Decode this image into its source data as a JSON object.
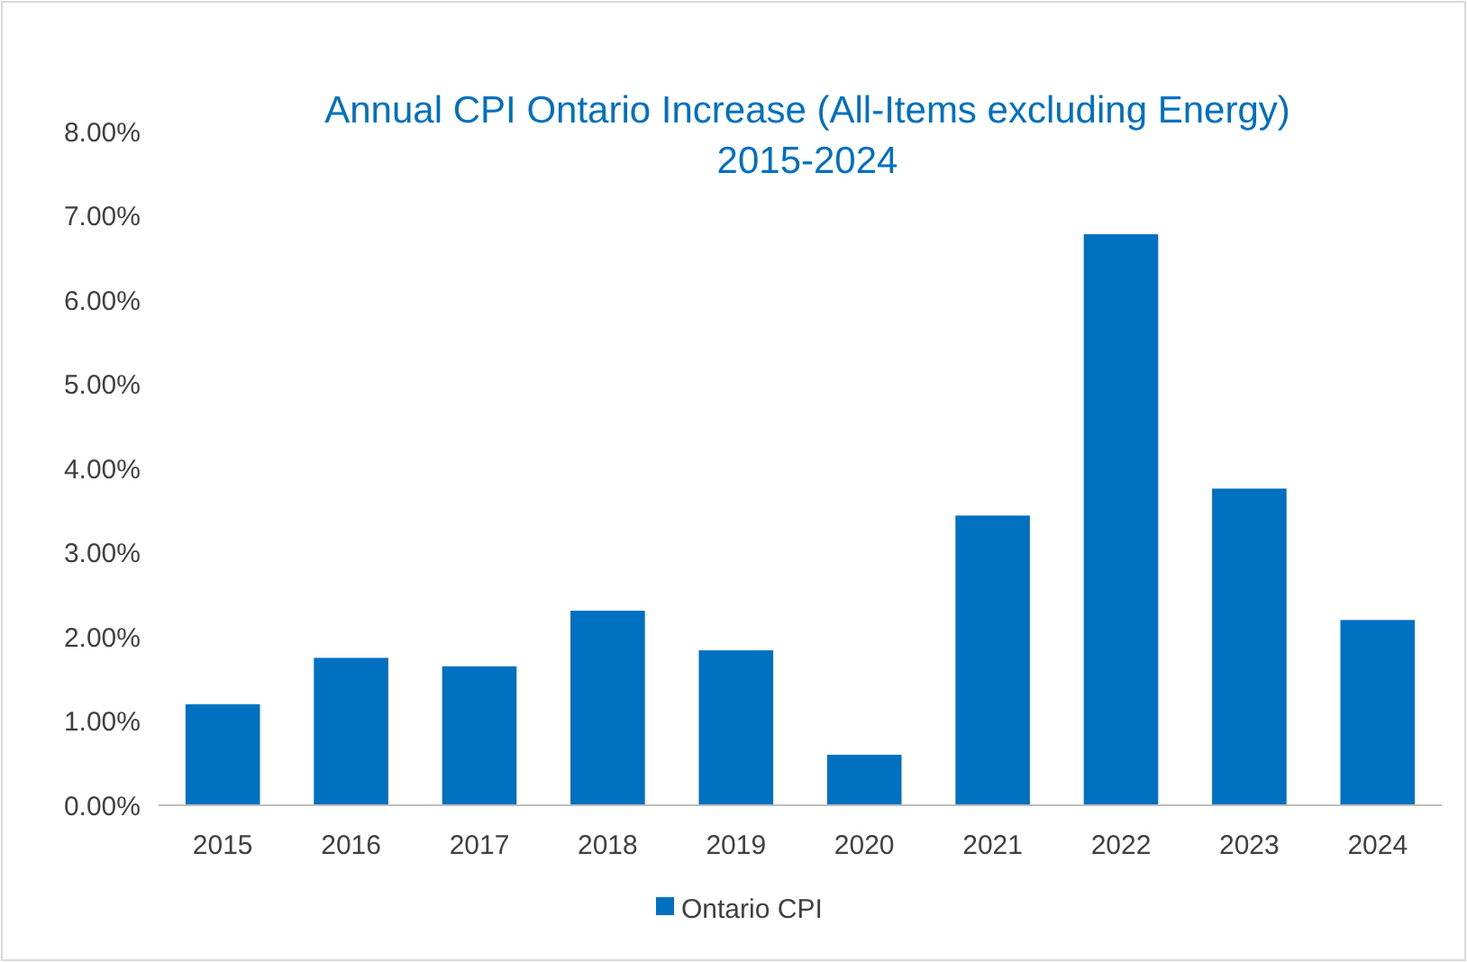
{
  "chart_data": {
    "type": "bar",
    "title": "Annual CPI Ontario Increase (All-Items excluding Energy)\n2015-2024",
    "categories": [
      "2015",
      "2016",
      "2017",
      "2018",
      "2019",
      "2020",
      "2021",
      "2022",
      "2023",
      "2024"
    ],
    "series": [
      {
        "name": "Ontario CPI",
        "color": "#0070c0",
        "values": [
          1.2,
          1.75,
          1.65,
          2.31,
          1.84,
          0.6,
          3.44,
          6.78,
          3.76,
          2.2
        ]
      }
    ],
    "ylim": [
      0,
      8
    ],
    "yticks": [
      {
        "value": 0,
        "label": "0.00%"
      },
      {
        "value": 1,
        "label": "1.00%"
      },
      {
        "value": 2,
        "label": "2.00%"
      },
      {
        "value": 3,
        "label": "3.00%"
      },
      {
        "value": 4,
        "label": "4.00%"
      },
      {
        "value": 5,
        "label": "5.00%"
      },
      {
        "value": 6,
        "label": "6.00%"
      },
      {
        "value": 7,
        "label": "7.00%"
      },
      {
        "value": 8,
        "label": "8.00%"
      }
    ],
    "grid": false,
    "legend": "bottom"
  }
}
